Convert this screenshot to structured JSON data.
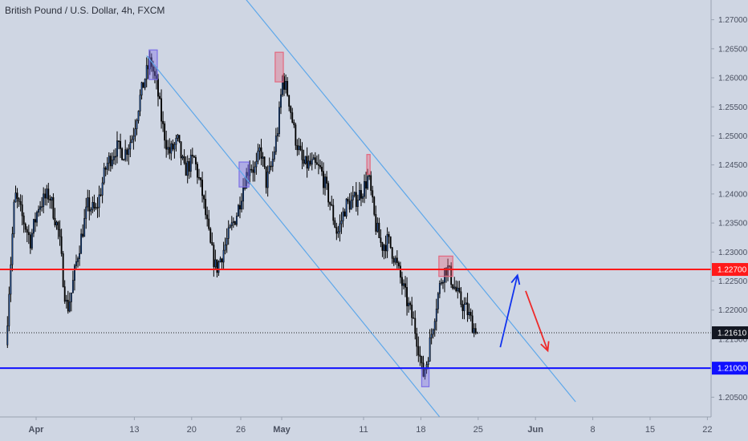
{
  "header": {
    "title": "British Pound / U.S. Dollar, 4h, FXCM"
  },
  "chart_data": {
    "type": "candlestick",
    "title": "British Pound / U.S. Dollar, 4h, FXCM",
    "ylim": [
      1.2016,
      1.2734
    ],
    "y_ticks": [
      "1.20500",
      "1.21000",
      "1.21500",
      "1.22000",
      "1.22500",
      "1.23000",
      "1.23500",
      "1.24000",
      "1.24500",
      "1.25000",
      "1.25500",
      "1.26000",
      "1.26500",
      "1.27000"
    ],
    "x_ticks": [
      {
        "label": "Apr",
        "day": 0
      },
      {
        "label": "13",
        "day": 12
      },
      {
        "label": "20",
        "day": 19
      },
      {
        "label": "26",
        "day": 25
      },
      {
        "label": "May",
        "day": 30
      },
      {
        "label": "11",
        "day": 40
      },
      {
        "label": "18",
        "day": 47
      },
      {
        "label": "25",
        "day": 54
      },
      {
        "label": "Jun",
        "day": 61
      },
      {
        "label": "8",
        "day": 68
      },
      {
        "label": "15",
        "day": 75
      },
      {
        "label": "22",
        "day": 82
      }
    ],
    "levels": [
      {
        "label": "1.22700",
        "value": 1.227,
        "color": "#ff1a1a"
      },
      {
        "label": "1.21000",
        "value": 1.21,
        "color": "#1111ff"
      }
    ],
    "current_price": {
      "label": "1.21610",
      "value": 1.2161
    },
    "channel": {
      "color": "#5ea8ea",
      "upper": {
        "start": {
          "day": 24.3,
          "price": 1.2758
        },
        "end": {
          "day": 65.9,
          "price": 1.2042
        }
      },
      "lower": {
        "start": {
          "day": 13.5,
          "price": 1.2638
        },
        "end": {
          "day": 49.3,
          "price": 1.2016
        }
      }
    },
    "highlight_boxes": [
      {
        "color": "#7c6fe6",
        "d1": 13.8,
        "d2": 14.8,
        "high": 1.2648,
        "low": 1.2597
      },
      {
        "color": "#7c6fe6",
        "d1": 24.8,
        "d2": 26.0,
        "high": 1.2455,
        "low": 1.2412
      },
      {
        "color": "#e3687f",
        "d1": 29.2,
        "d2": 30.2,
        "high": 1.2644,
        "low": 1.2593
      },
      {
        "color": "#e3687f",
        "d1": 40.4,
        "d2": 40.8,
        "high": 1.2468,
        "low": 1.2434
      },
      {
        "color": "#7c6fe6",
        "d1": 47.1,
        "d2": 48.0,
        "high": 1.21,
        "low": 1.2068
      },
      {
        "color": "#e3687f",
        "d1": 49.2,
        "d2": 50.9,
        "high": 1.2293,
        "low": 1.2258
      }
    ],
    "arrows": [
      {
        "color": "#1133ee",
        "from": {
          "day": 56.7,
          "price": 1.2136
        },
        "to": {
          "day": 58.8,
          "price": 1.226
        }
      },
      {
        "color": "#ee2a2a",
        "from": {
          "day": 59.8,
          "price": 1.2233
        },
        "to": {
          "day": 62.5,
          "price": 1.213
        }
      }
    ],
    "anchors": [
      {
        "day": -3.5,
        "price": 1.214
      },
      {
        "day": -3.0,
        "price": 1.226
      },
      {
        "day": -2.4,
        "price": 1.24
      },
      {
        "day": -1.5,
        "price": 1.236
      },
      {
        "day": -0.5,
        "price": 1.232
      },
      {
        "day": 0.5,
        "price": 1.238
      },
      {
        "day": 1.8,
        "price": 1.24
      },
      {
        "day": 3.0,
        "price": 1.233
      },
      {
        "day": 3.6,
        "price": 1.224
      },
      {
        "day": 4.0,
        "price": 1.22
      },
      {
        "day": 4.5,
        "price": 1.223
      },
      {
        "day": 5.2,
        "price": 1.229
      },
      {
        "day": 6.5,
        "price": 1.238
      },
      {
        "day": 7.5,
        "price": 1.237
      },
      {
        "day": 8.8,
        "price": 1.245
      },
      {
        "day": 10.0,
        "price": 1.248
      },
      {
        "day": 11.0,
        "price": 1.247
      },
      {
        "day": 12.0,
        "price": 1.25
      },
      {
        "day": 12.8,
        "price": 1.256
      },
      {
        "day": 13.5,
        "price": 1.26
      },
      {
        "day": 14.2,
        "price": 1.263
      },
      {
        "day": 15.0,
        "price": 1.258
      },
      {
        "day": 15.6,
        "price": 1.252
      },
      {
        "day": 16.4,
        "price": 1.247
      },
      {
        "day": 17.5,
        "price": 1.249
      },
      {
        "day": 18.3,
        "price": 1.244
      },
      {
        "day": 19.5,
        "price": 1.246
      },
      {
        "day": 20.5,
        "price": 1.24
      },
      {
        "day": 21.5,
        "price": 1.231
      },
      {
        "day": 22.2,
        "price": 1.227
      },
      {
        "day": 23.0,
        "price": 1.23
      },
      {
        "day": 24.0,
        "price": 1.234
      },
      {
        "day": 24.8,
        "price": 1.237
      },
      {
        "day": 25.6,
        "price": 1.242
      },
      {
        "day": 26.3,
        "price": 1.245
      },
      {
        "day": 27.0,
        "price": 1.244
      },
      {
        "day": 27.6,
        "price": 1.248
      },
      {
        "day": 28.3,
        "price": 1.242
      },
      {
        "day": 29.0,
        "price": 1.245
      },
      {
        "day": 29.8,
        "price": 1.252
      },
      {
        "day": 30.3,
        "price": 1.26
      },
      {
        "day": 31.0,
        "price": 1.257
      },
      {
        "day": 31.8,
        "price": 1.25
      },
      {
        "day": 32.8,
        "price": 1.245
      },
      {
        "day": 34.0,
        "price": 1.245
      },
      {
        "day": 35.0,
        "price": 1.244
      },
      {
        "day": 36.0,
        "price": 1.239
      },
      {
        "day": 37.0,
        "price": 1.233
      },
      {
        "day": 38.0,
        "price": 1.238
      },
      {
        "day": 39.2,
        "price": 1.239
      },
      {
        "day": 40.2,
        "price": 1.241
      },
      {
        "day": 40.8,
        "price": 1.243
      },
      {
        "day": 41.6,
        "price": 1.235
      },
      {
        "day": 42.4,
        "price": 1.231
      },
      {
        "day": 43.2,
        "price": 1.232
      },
      {
        "day": 44.0,
        "price": 1.229
      },
      {
        "day": 44.8,
        "price": 1.225
      },
      {
        "day": 45.6,
        "price": 1.221
      },
      {
        "day": 46.3,
        "price": 1.218
      },
      {
        "day": 47.0,
        "price": 1.213
      },
      {
        "day": 47.4,
        "price": 1.2085
      },
      {
        "day": 47.9,
        "price": 1.211
      },
      {
        "day": 48.5,
        "price": 1.216
      },
      {
        "day": 49.2,
        "price": 1.222
      },
      {
        "day": 49.8,
        "price": 1.226
      },
      {
        "day": 50.4,
        "price": 1.2275
      },
      {
        "day": 51.0,
        "price": 1.225
      },
      {
        "day": 52.0,
        "price": 1.2215
      },
      {
        "day": 52.8,
        "price": 1.22
      },
      {
        "day": 53.5,
        "price": 1.2175
      },
      {
        "day": 53.9,
        "price": 1.2161
      }
    ]
  }
}
